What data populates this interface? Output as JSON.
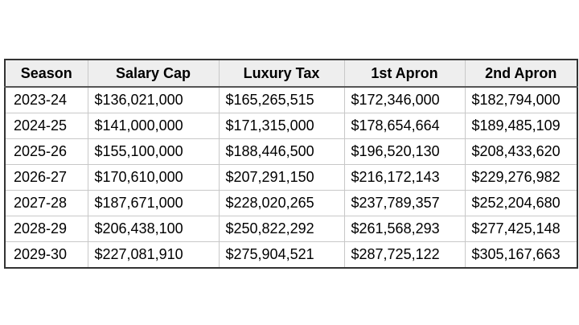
{
  "table": {
    "headers": [
      "Season",
      "Salary Cap",
      "Luxury Tax",
      "1st Apron",
      "2nd Apron"
    ],
    "rows": [
      [
        "2023-24",
        "$136,021,000",
        "$165,265,515",
        "$172,346,000",
        "$182,794,000"
      ],
      [
        "2024-25",
        "$141,000,000",
        "$171,315,000",
        "$178,654,664",
        "$189,485,109"
      ],
      [
        "2025-26",
        "$155,100,000",
        "$188,446,500",
        "$196,520,130",
        "$208,433,620"
      ],
      [
        "2026-27",
        "$170,610,000",
        "$207,291,150",
        "$216,172,143",
        "$229,276,982"
      ],
      [
        "2027-28",
        "$187,671,000",
        "$228,020,265",
        "$237,789,357",
        "$252,204,680"
      ],
      [
        "2028-29",
        "$206,438,100",
        "$250,822,292",
        "$261,568,293",
        "$277,425,148"
      ],
      [
        "2029-30",
        "$227,081,910",
        "$275,904,521",
        "$287,725,122",
        "$305,167,663"
      ]
    ]
  }
}
